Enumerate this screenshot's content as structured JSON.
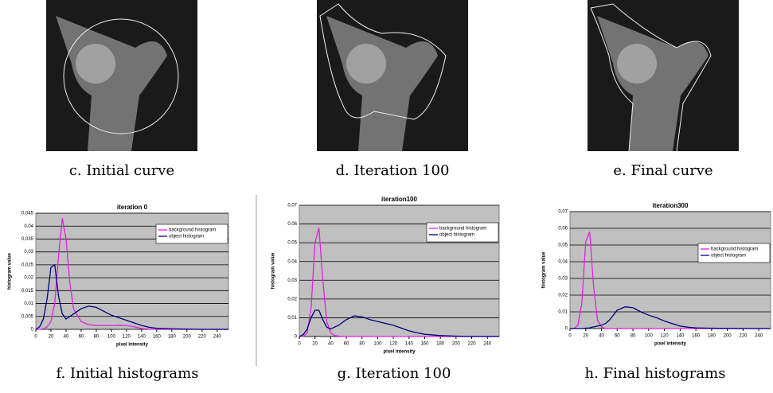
{
  "images": [
    {
      "caption": "c. Initial curve"
    },
    {
      "caption": "d. Iteration 100"
    },
    {
      "caption": "e. Final curve"
    }
  ],
  "chart_data": [
    {
      "type": "line",
      "title": "iteration 0",
      "caption": "f. Initial histograms",
      "x_label": "pixel intensity",
      "y_label": "histogram value",
      "x": [
        0,
        5,
        10,
        15,
        20,
        25,
        30,
        35,
        40,
        45,
        50,
        60,
        70,
        80,
        90,
        100,
        110,
        120,
        130,
        140,
        150,
        160,
        180,
        200,
        220,
        255
      ],
      "series": [
        {
          "name": "background histogram",
          "color": "#e020e0",
          "values": [
            0,
            0,
            0.0002,
            0.001,
            0.003,
            0.01,
            0.028,
            0.043,
            0.035,
            0.018,
            0.008,
            0.003,
            0.0018,
            0.0015,
            0.0015,
            0.0015,
            0.0016,
            0.0015,
            0.001,
            0.0003,
            0.0001,
            0,
            0,
            0,
            0,
            0
          ]
        },
        {
          "name": "object histogram",
          "color": "#000080",
          "values": [
            0,
            0.001,
            0.004,
            0.012,
            0.024,
            0.025,
            0.013,
            0.006,
            0.004,
            0.005,
            0.006,
            0.008,
            0.009,
            0.0085,
            0.007,
            0.0055,
            0.0045,
            0.0035,
            0.0025,
            0.0015,
            0.0008,
            0.0004,
            0.0002,
            0.0001,
            0,
            0
          ]
        }
      ],
      "xlim": [
        0,
        255
      ],
      "xticks": [
        0,
        20,
        40,
        60,
        80,
        100,
        120,
        140,
        160,
        180,
        200,
        220,
        240
      ],
      "ylim": [
        0,
        0.045
      ],
      "yticks": [
        0,
        {
          "value": 0.005,
          "label": "0,005"
        },
        {
          "value": 0.01,
          "label": "0,01"
        },
        {
          "value": 0.015,
          "label": "0,015"
        },
        {
          "value": 0.02,
          "label": "0,02"
        },
        {
          "value": 0.025,
          "label": "0,025"
        },
        {
          "value": 0.03,
          "label": "0,03"
        },
        {
          "value": 0.035,
          "label": "0,035"
        },
        {
          "value": 0.04,
          "label": "0,04"
        },
        {
          "value": 0.045,
          "label": "0,045"
        }
      ],
      "grid": true,
      "legend": "right"
    },
    {
      "type": "line",
      "title": "iteration100",
      "caption": "g. Iteration 100",
      "x_label": "pixel intensity",
      "y_label": "histogram value",
      "x": [
        0,
        5,
        10,
        15,
        20,
        25,
        30,
        35,
        40,
        45,
        50,
        60,
        70,
        80,
        90,
        100,
        110,
        120,
        130,
        140,
        150,
        160,
        180,
        200,
        220,
        255
      ],
      "series": [
        {
          "name": "background histogram",
          "color": "#e020e0",
          "values": [
            0,
            0,
            0.002,
            0.015,
            0.05,
            0.058,
            0.03,
            0.008,
            0.002,
            0.0005,
            0.0002,
            0,
            0,
            0,
            0,
            0,
            0,
            0,
            0,
            0,
            0,
            0,
            0,
            0,
            0,
            0
          ]
        },
        {
          "name": "object histogram",
          "color": "#000080",
          "values": [
            0,
            0.001,
            0.004,
            0.01,
            0.014,
            0.014,
            0.009,
            0.005,
            0.004,
            0.005,
            0.006,
            0.009,
            0.011,
            0.0105,
            0.009,
            0.008,
            0.007,
            0.006,
            0.0045,
            0.003,
            0.002,
            0.0012,
            0.0005,
            0.0002,
            0,
            0
          ]
        }
      ],
      "xlim": [
        0,
        255
      ],
      "xticks": [
        0,
        20,
        40,
        60,
        80,
        100,
        120,
        140,
        160,
        180,
        200,
        220,
        240
      ],
      "ylim": [
        0,
        0.07
      ],
      "yticks": [
        0,
        {
          "value": 0.01,
          "label": "0,01"
        },
        {
          "value": 0.02,
          "label": "0,02"
        },
        {
          "value": 0.03,
          "label": "0,03"
        },
        {
          "value": 0.04,
          "label": "0,04"
        },
        {
          "value": 0.05,
          "label": "0,05"
        },
        {
          "value": 0.06,
          "label": "0,06"
        },
        {
          "value": 0.07,
          "label": "0,07"
        }
      ],
      "grid": true,
      "legend": "right"
    },
    {
      "type": "line",
      "title": "iteration300",
      "caption": "h. Final histograms",
      "x_label": "pixel intensity",
      "y_label": "histogram value",
      "x": [
        0,
        5,
        10,
        15,
        20,
        25,
        30,
        35,
        40,
        45,
        50,
        60,
        70,
        80,
        90,
        100,
        110,
        120,
        130,
        140,
        150,
        160,
        180,
        200,
        220,
        255
      ],
      "series": [
        {
          "name": "background histogram",
          "color": "#e020e0",
          "values": [
            0,
            0,
            0.002,
            0.015,
            0.052,
            0.058,
            0.025,
            0.005,
            0.001,
            0,
            0,
            0,
            0,
            0,
            0,
            0,
            0,
            0,
            0,
            0,
            0,
            0,
            0,
            0,
            0,
            0
          ]
        },
        {
          "name": "object histogram",
          "color": "#000080",
          "values": [
            0,
            0,
            0,
            0,
            0.0002,
            0.0004,
            0.001,
            0.0015,
            0.002,
            0.003,
            0.005,
            0.011,
            0.013,
            0.0125,
            0.01,
            0.008,
            0.0065,
            0.0045,
            0.003,
            0.0015,
            0.0008,
            0.0004,
            0.0002,
            0.0001,
            0,
            0
          ]
        }
      ],
      "xlim": [
        0,
        255
      ],
      "xticks": [
        0,
        20,
        40,
        60,
        80,
        100,
        120,
        140,
        160,
        180,
        200,
        220,
        240
      ],
      "ylim": [
        0,
        0.07
      ],
      "yticks": [
        0,
        {
          "value": 0.01,
          "label": "0,01"
        },
        {
          "value": 0.02,
          "label": "0,02"
        },
        {
          "value": 0.03,
          "label": "0,03"
        },
        {
          "value": 0.04,
          "label": "0,04"
        },
        {
          "value": 0.05,
          "label": "0,05"
        },
        {
          "value": 0.06,
          "label": "0,06"
        },
        {
          "value": 0.07,
          "label": "0,07"
        }
      ],
      "grid": true,
      "legend": "right"
    }
  ]
}
